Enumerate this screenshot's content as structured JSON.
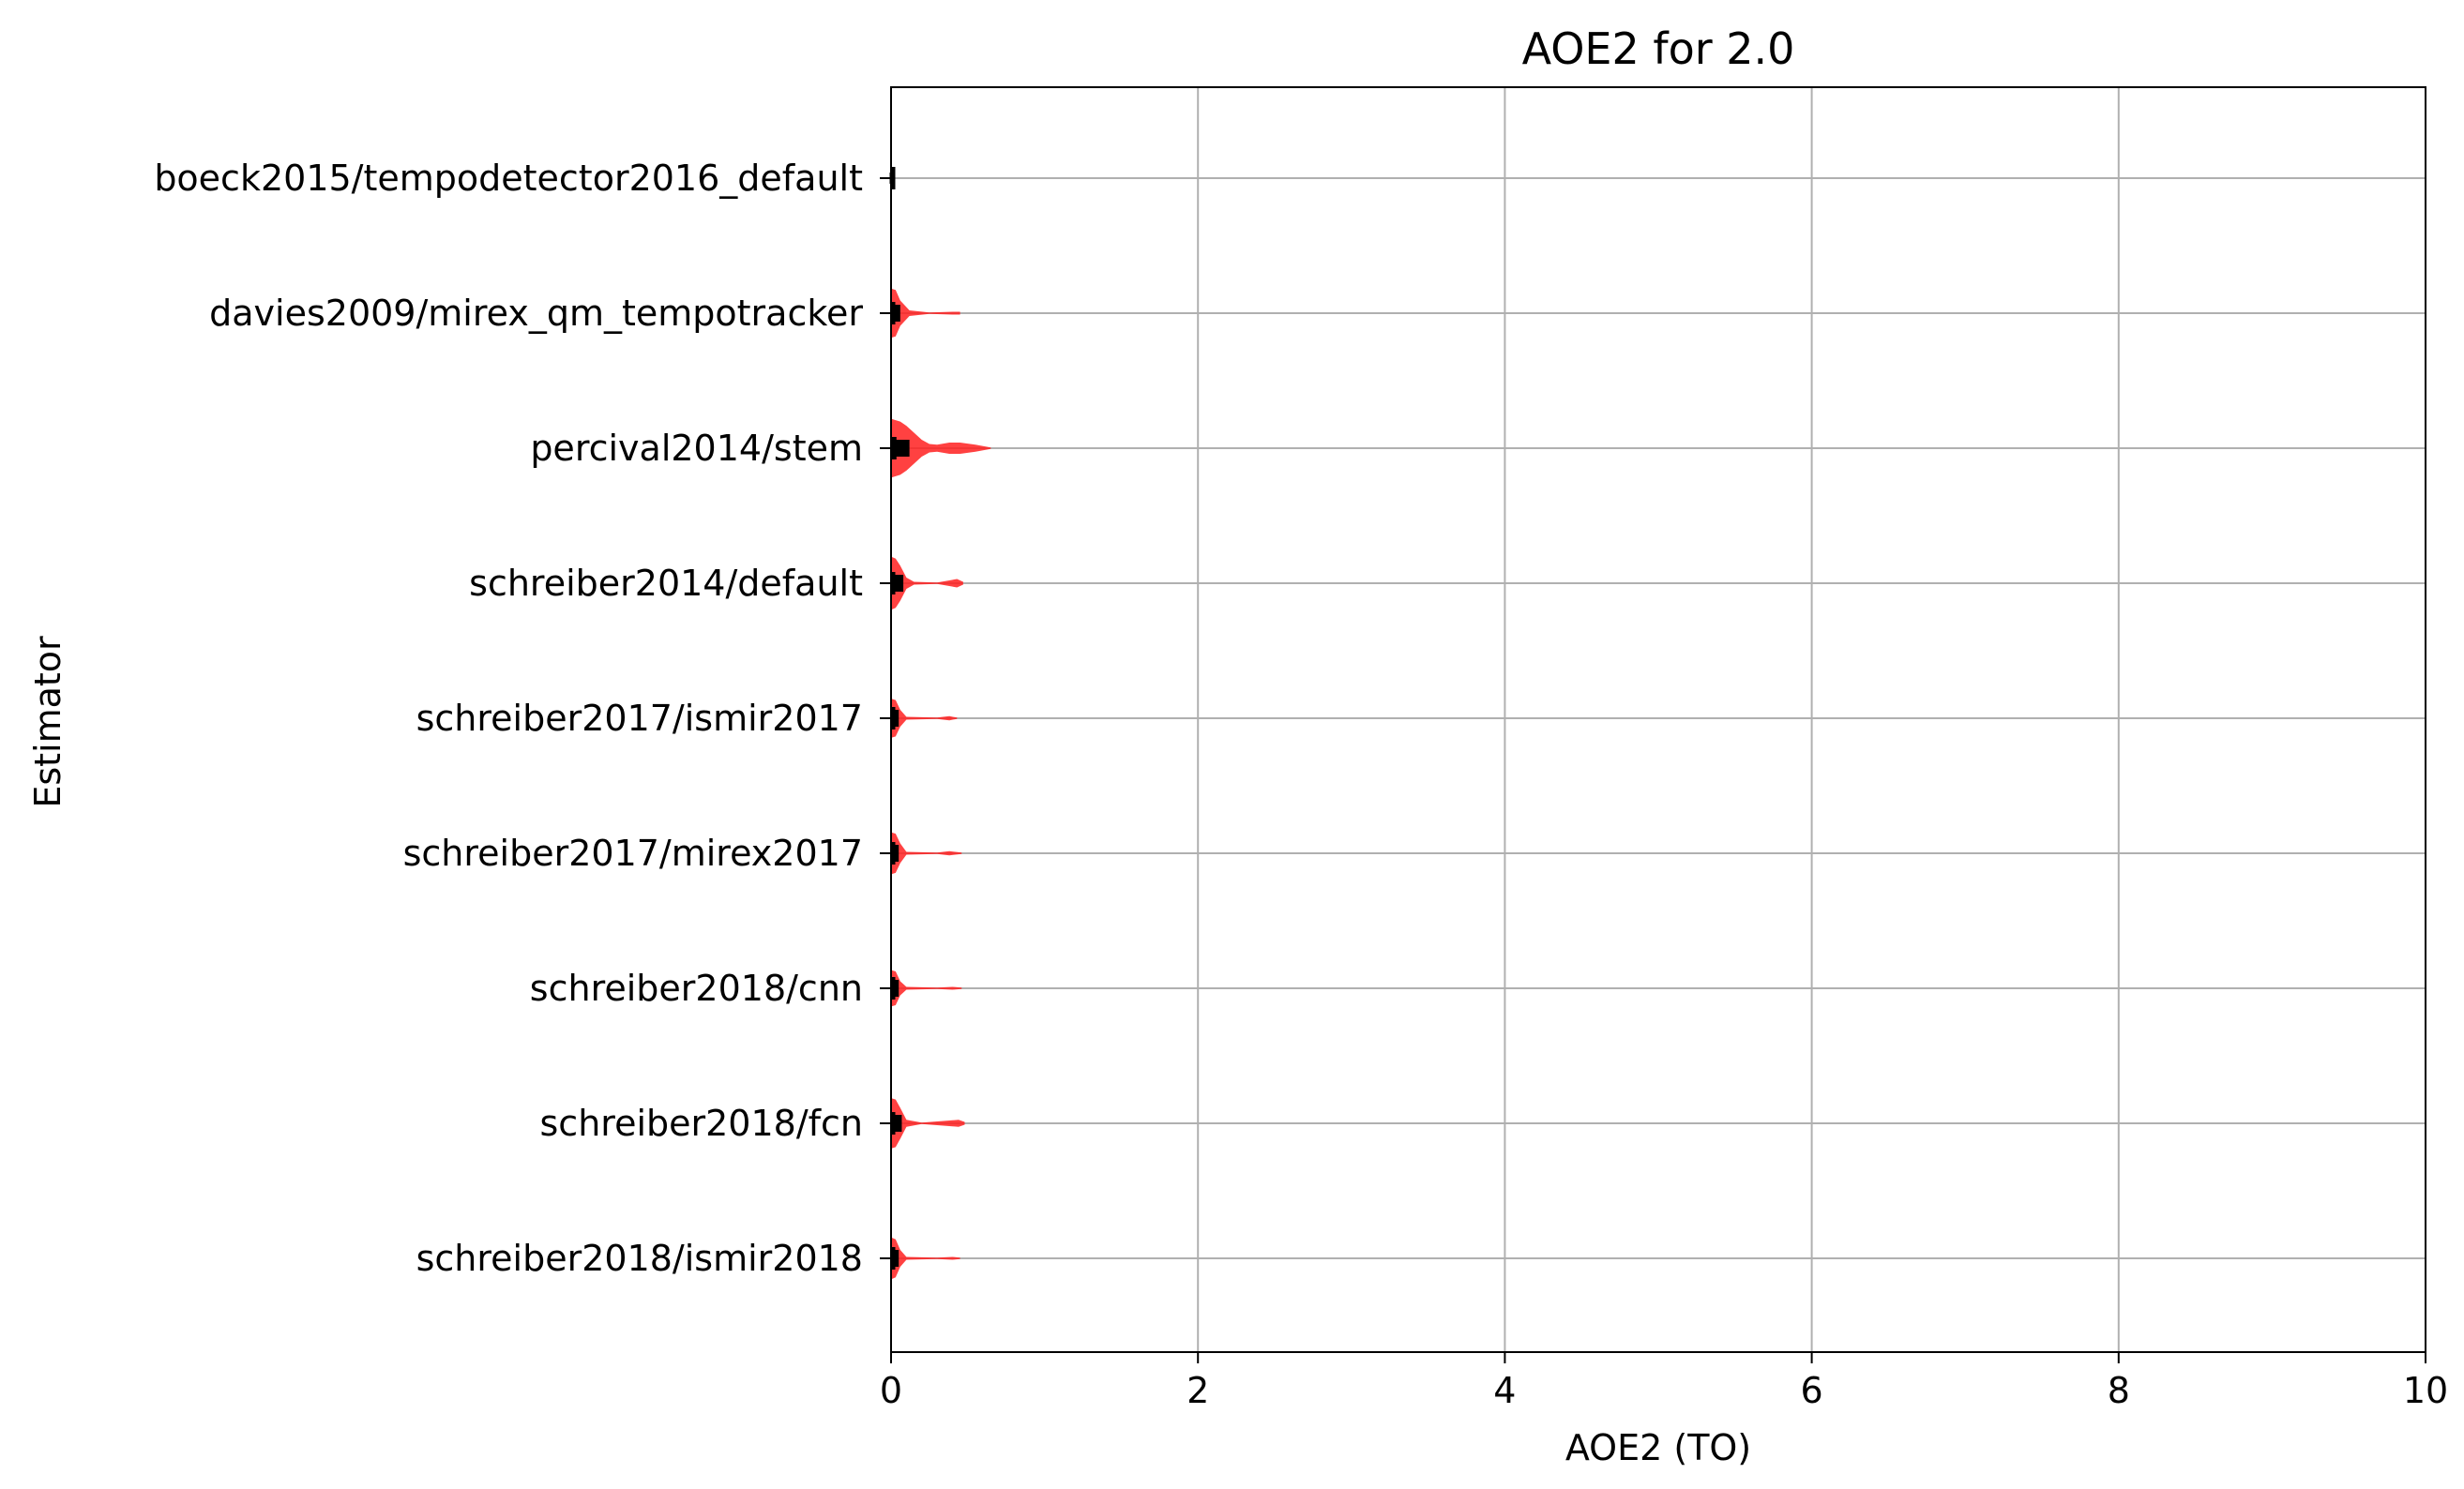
{
  "chart_data": {
    "type": "violin",
    "orientation": "horizontal",
    "title": "AOE2 for 2.0",
    "xlabel": "AOE2 (TO)",
    "ylabel": "Estimator",
    "xlim": [
      0,
      10
    ],
    "xticks": [
      "0",
      "2",
      "4",
      "6",
      "8",
      "10"
    ],
    "grid": true,
    "violin_color": "#ff2020",
    "categories": [
      "boeck2015/tempodetector2016_default",
      "davies2009/mirex_qm_tempotracker",
      "percival2014/stem",
      "schreiber2014/default",
      "schreiber2017/ismir2017",
      "schreiber2017/mirex2017",
      "schreiber2018/cnn",
      "schreiber2018/fcn",
      "schreiber2018/ismir2018"
    ],
    "series": [
      {
        "values": [
          0.0,
          0.0,
          0.0,
          0.01,
          0.02
        ],
        "density": [
          [
            0.0,
            0.05
          ],
          [
            0.02,
            0.03
          ]
        ]
      },
      {
        "values": [
          0.0,
          0.01,
          0.03,
          0.06,
          0.45
        ],
        "density": [
          [
            0.0,
            0.35
          ],
          [
            0.03,
            0.33
          ],
          [
            0.06,
            0.18
          ],
          [
            0.12,
            0.04
          ],
          [
            0.25,
            0.01
          ],
          [
            0.4,
            0.02
          ],
          [
            0.45,
            0.02
          ]
        ]
      },
      {
        "values": [
          0.0,
          0.02,
          0.06,
          0.12,
          0.65
        ],
        "density": [
          [
            0.0,
            0.42
          ],
          [
            0.03,
            0.4
          ],
          [
            0.06,
            0.38
          ],
          [
            0.1,
            0.32
          ],
          [
            0.15,
            0.22
          ],
          [
            0.2,
            0.12
          ],
          [
            0.25,
            0.06
          ],
          [
            0.3,
            0.05
          ],
          [
            0.38,
            0.08
          ],
          [
            0.45,
            0.08
          ],
          [
            0.55,
            0.05
          ],
          [
            0.65,
            0.01
          ]
        ]
      },
      {
        "values": [
          0.0,
          0.01,
          0.04,
          0.08,
          0.47
        ],
        "density": [
          [
            0.0,
            0.38
          ],
          [
            0.03,
            0.35
          ],
          [
            0.06,
            0.25
          ],
          [
            0.1,
            0.08
          ],
          [
            0.15,
            0.02
          ],
          [
            0.3,
            0.01
          ],
          [
            0.38,
            0.04
          ],
          [
            0.43,
            0.06
          ],
          [
            0.47,
            0.02
          ]
        ]
      },
      {
        "values": [
          0.0,
          0.01,
          0.03,
          0.05,
          0.43
        ],
        "density": [
          [
            0.0,
            0.28
          ],
          [
            0.03,
            0.26
          ],
          [
            0.06,
            0.12
          ],
          [
            0.1,
            0.02
          ],
          [
            0.3,
            0.01
          ],
          [
            0.38,
            0.03
          ],
          [
            0.43,
            0.01
          ]
        ]
      },
      {
        "values": [
          0.0,
          0.01,
          0.03,
          0.05,
          0.46
        ],
        "density": [
          [
            0.0,
            0.3
          ],
          [
            0.03,
            0.28
          ],
          [
            0.06,
            0.14
          ],
          [
            0.1,
            0.02
          ],
          [
            0.3,
            0.01
          ],
          [
            0.38,
            0.03
          ],
          [
            0.46,
            0.01
          ]
        ]
      },
      {
        "values": [
          0.0,
          0.01,
          0.03,
          0.05,
          0.46
        ],
        "density": [
          [
            0.0,
            0.26
          ],
          [
            0.03,
            0.24
          ],
          [
            0.06,
            0.1
          ],
          [
            0.1,
            0.02
          ],
          [
            0.3,
            0.01
          ],
          [
            0.4,
            0.02
          ],
          [
            0.46,
            0.01
          ]
        ]
      },
      {
        "values": [
          0.0,
          0.01,
          0.04,
          0.07,
          0.48
        ],
        "density": [
          [
            0.0,
            0.36
          ],
          [
            0.03,
            0.34
          ],
          [
            0.06,
            0.22
          ],
          [
            0.1,
            0.05
          ],
          [
            0.2,
            0.01
          ],
          [
            0.38,
            0.04
          ],
          [
            0.44,
            0.05
          ],
          [
            0.48,
            0.02
          ]
        ]
      },
      {
        "values": [
          0.0,
          0.01,
          0.03,
          0.05,
          0.45
        ],
        "density": [
          [
            0.0,
            0.3
          ],
          [
            0.03,
            0.27
          ],
          [
            0.06,
            0.12
          ],
          [
            0.1,
            0.02
          ],
          [
            0.3,
            0.01
          ],
          [
            0.4,
            0.02
          ],
          [
            0.45,
            0.01
          ]
        ]
      }
    ]
  }
}
